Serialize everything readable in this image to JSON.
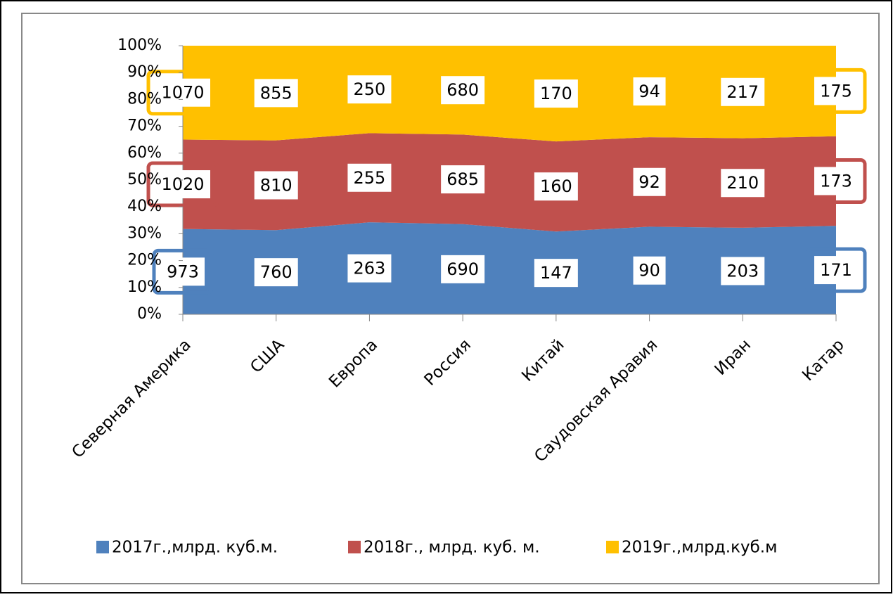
{
  "chart_data": {
    "type": "area_percent_stacked",
    "categories": [
      "Северная Америка",
      "США",
      "Европа",
      "Россия",
      "Китай",
      "Саудовская Аравия",
      "Иран",
      "Катар"
    ],
    "series": [
      {
        "name": "2017г.,млрд. куб.м.",
        "color": "#4f81bd",
        "values": [
          973,
          760,
          263,
          690,
          147,
          90,
          203,
          171
        ]
      },
      {
        "name": "2018г., млрд. куб. м.",
        "color": "#c0504d",
        "values": [
          1020,
          810,
          255,
          685,
          160,
          92,
          210,
          173
        ]
      },
      {
        "name": "2019г.,млрд.куб.м",
        "color": "#ffc000",
        "values": [
          1070,
          855,
          250,
          680,
          170,
          94,
          217,
          175
        ]
      }
    ],
    "ylim": [
      0,
      100
    ],
    "yticks": [
      {
        "value": 0,
        "label": "0%"
      },
      {
        "value": 10,
        "label": "10%"
      },
      {
        "value": 20,
        "label": "20%"
      },
      {
        "value": 30,
        "label": "30%"
      },
      {
        "value": 40,
        "label": "40%"
      },
      {
        "value": 50,
        "label": "50%"
      },
      {
        "value": 60,
        "label": "60%"
      },
      {
        "value": 70,
        "label": "70%"
      },
      {
        "value": 80,
        "label": "80%"
      },
      {
        "value": 90,
        "label": "90%"
      },
      {
        "value": 100,
        "label": "100%"
      }
    ],
    "legend": "bottom"
  }
}
